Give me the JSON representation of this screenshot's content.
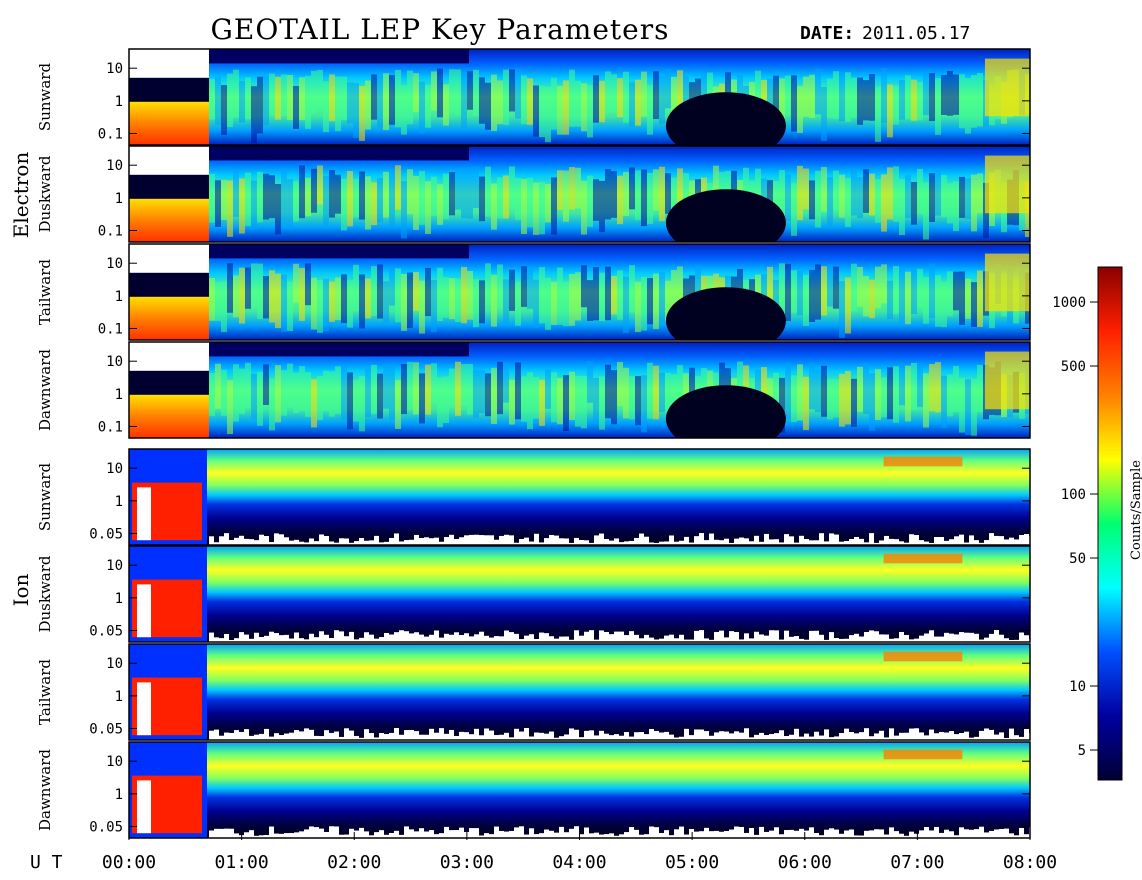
{
  "header": {
    "title": "GEOTAIL LEP Key Parameters",
    "date_label": "DATE:",
    "date_value": "2011.05.17"
  },
  "chart_data": {
    "type": "heatmap",
    "x_axis": {
      "label": "U T",
      "ticks": [
        "00:00",
        "01:00",
        "02:00",
        "03:00",
        "04:00",
        "05:00",
        "06:00",
        "07:00",
        "08:00"
      ],
      "range_hours": [
        0,
        8
      ]
    },
    "groups": [
      {
        "name": "Electron",
        "y_scale": "log",
        "y_ticks": [
          "10",
          "1",
          "0.1"
        ],
        "panels": [
          "Sunward",
          "Duskward",
          "Tailward",
          "Dawnward"
        ]
      },
      {
        "name": "Ion",
        "y_scale": "log",
        "y_ticks": [
          "10",
          "1",
          "0.05"
        ],
        "panels": [
          "Sunward",
          "Duskward",
          "Tailward",
          "Dawnward"
        ]
      }
    ],
    "colorbar": {
      "label": "Counts/Sample",
      "scale": "log",
      "ticks": [
        "1000",
        "500",
        "100",
        "50",
        "10",
        "5"
      ],
      "colors": [
        "#8a0000",
        "#ff2000",
        "#ff8000",
        "#ffff00",
        "#00ff70",
        "#00ffff",
        "#0050ff",
        "#0000a0",
        "#000033"
      ]
    }
  }
}
